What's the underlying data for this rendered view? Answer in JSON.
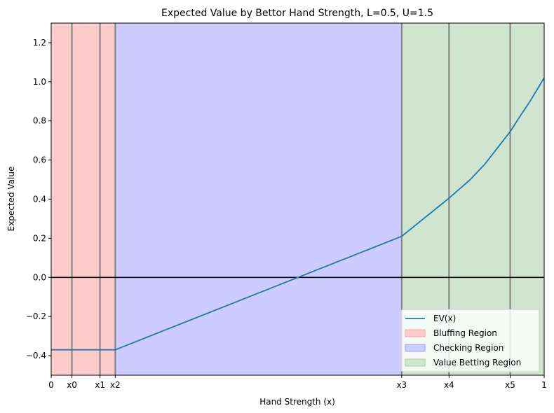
{
  "chart_data": {
    "type": "line",
    "title": "Expected Value by Bettor Hand Strength, L=0.5, U=1.5",
    "xlabel": "Hand Strength (x)",
    "ylabel": "Expected Value",
    "xlim": [
      0,
      1
    ],
    "ylim": [
      -0.5,
      1.3
    ],
    "grid": false,
    "legend_position": "bottom-right",
    "x_ticks": [
      {
        "value": 0,
        "label": "0"
      },
      {
        "value": 0.042,
        "label": "x0"
      },
      {
        "value": 0.099,
        "label": "x1"
      },
      {
        "value": 0.13,
        "label": "x2"
      },
      {
        "value": 0.711,
        "label": "x3"
      },
      {
        "value": 0.807,
        "label": "x4"
      },
      {
        "value": 0.931,
        "label": "x5"
      },
      {
        "value": 1,
        "label": "1"
      }
    ],
    "y_ticks": [
      {
        "value": -0.4,
        "label": "−0.4"
      },
      {
        "value": -0.2,
        "label": "−0.2"
      },
      {
        "value": 0.0,
        "label": "0.0"
      },
      {
        "value": 0.2,
        "label": "0.2"
      },
      {
        "value": 0.4,
        "label": "0.4"
      },
      {
        "value": 0.6,
        "label": "0.6"
      },
      {
        "value": 0.8,
        "label": "0.8"
      },
      {
        "value": 1.0,
        "label": "1.0"
      },
      {
        "value": 1.2,
        "label": "1.2"
      }
    ],
    "regions": [
      {
        "name": "Bluffing Region",
        "x_start": 0,
        "x_end": 0.13,
        "color": "#ffcccc"
      },
      {
        "name": "Checking Region",
        "x_start": 0.13,
        "x_end": 0.711,
        "color": "#ccccff"
      },
      {
        "name": "Value Betting Region",
        "x_start": 0.711,
        "x_end": 1,
        "color": "#cfe5cf"
      }
    ],
    "vertical_lines": [
      0.042,
      0.099,
      0.13,
      0.711,
      0.807,
      0.931
    ],
    "hline": 0,
    "series": [
      {
        "name": "EV(x)",
        "color": "#1f77b4",
        "x": [
          0,
          0.13,
          0.711,
          0.807,
          0.85,
          0.88,
          0.9,
          0.931,
          0.95,
          0.97,
          1.0
        ],
        "y": [
          -0.37,
          -0.37,
          0.21,
          0.405,
          0.5,
          0.58,
          0.645,
          0.745,
          0.82,
          0.895,
          1.02
        ]
      }
    ],
    "legend": [
      {
        "label": "EV(x)",
        "kind": "line",
        "color": "#1f77b4"
      },
      {
        "label": "Bluffing Region",
        "kind": "patch",
        "color": "#ffcccc",
        "edge": "#f4a0a0"
      },
      {
        "label": "Checking Region",
        "kind": "patch",
        "color": "#ccccff",
        "edge": "#a0a0f4"
      },
      {
        "label": "Value Betting Region",
        "kind": "patch",
        "color": "#cfe5cf",
        "edge": "#9fd09f"
      }
    ]
  }
}
